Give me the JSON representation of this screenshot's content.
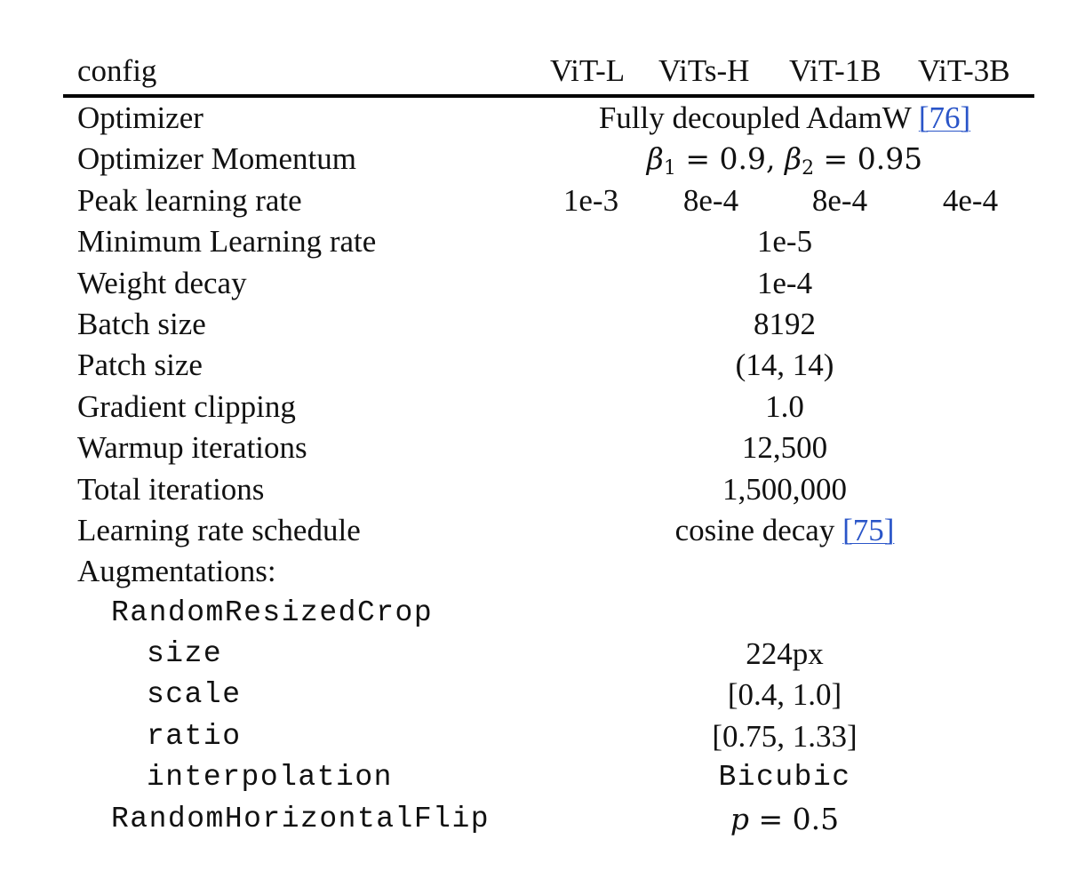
{
  "header": {
    "config": "config",
    "cols": [
      "ViT-L",
      "ViTs-H",
      "ViT-1B",
      "ViT-3B"
    ]
  },
  "rows": {
    "optimizer": {
      "label": "Optimizer",
      "value": "Fully decoupled AdamW",
      "cite": "[76]"
    },
    "momentum": {
      "label": "Optimizer Momentum",
      "beta1": "0.9",
      "beta2": "0.95"
    },
    "peak_lr": {
      "label": "Peak learning rate",
      "values": [
        "1e-3",
        "8e-4",
        "8e-4",
        "4e-4"
      ]
    },
    "min_lr": {
      "label": "Minimum Learning rate",
      "value": "1e-5"
    },
    "weight_decay": {
      "label": "Weight decay",
      "value": "1e-4"
    },
    "batch_size": {
      "label": "Batch size",
      "value": "8192"
    },
    "patch_size": {
      "label": "Patch size",
      "value": "(14, 14)"
    },
    "grad_clip": {
      "label": "Gradient clipping",
      "value": "1.0"
    },
    "warmup": {
      "label": "Warmup iterations",
      "value": "12,500"
    },
    "total_iters": {
      "label": "Total iterations",
      "value": "1,500,000"
    },
    "lr_schedule": {
      "label": "Learning rate schedule",
      "value": "cosine decay",
      "cite": "[75]"
    },
    "augmentations": {
      "label": "Augmentations:"
    },
    "rrc": {
      "label": "RandomResizedCrop"
    },
    "size": {
      "label": "size",
      "value": "224px"
    },
    "scale": {
      "label": "scale",
      "value": "[0.4, 1.0]"
    },
    "ratio": {
      "label": "ratio",
      "value": "[0.75, 1.33]"
    },
    "interpolation": {
      "label": "interpolation",
      "value": "Bicubic"
    },
    "hflip": {
      "label": "RandomHorizontalFlip",
      "p": "0.5"
    }
  }
}
